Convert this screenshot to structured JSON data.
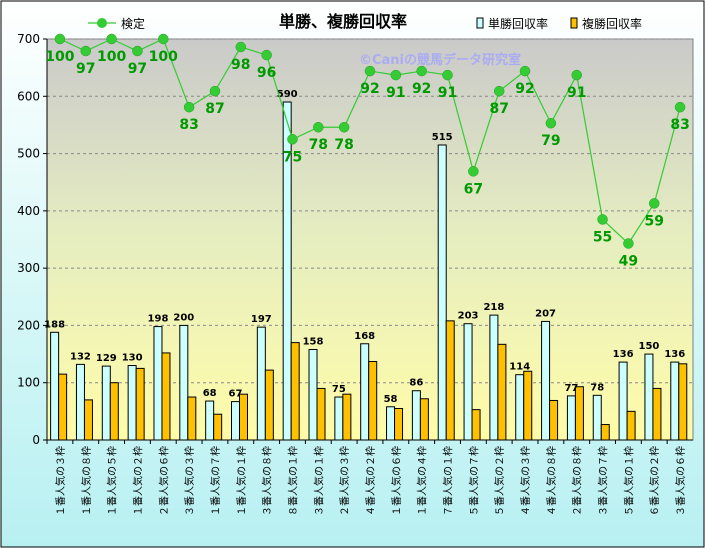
{
  "chart_data": {
    "type": "bar",
    "title": "単勝、複勝回収率",
    "watermark": "©Caniの競馬データ研究室",
    "categories": [
      "１番人気の３枠",
      "１番人気の８枠",
      "１番人気の５枠",
      "１番人気の２枠",
      "２番人気の６枠",
      "３番人気の３枠",
      "１番人気の７枠",
      "１番人気の１枠",
      "３番人気の８枠",
      "８番人気の１枠",
      "３番人気の１枠",
      "２番人気の３枠",
      "４番人気の２枠",
      "１番人気の６枠",
      "１番人気の４枠",
      "７番人気の１枠",
      "５番人気の７枠",
      "５番人気の２枠",
      "４番人気の３枠",
      "４番人気の８枠",
      "２番人気の８枠",
      "３番人気の７枠",
      "５番人気の１枠",
      "６番人気の２枠",
      "３番人気の６枠"
    ],
    "series": [
      {
        "name": "単勝回収率",
        "type": "bar",
        "color": "#ccffff",
        "values": [
          188,
          132,
          129,
          130,
          198,
          200,
          68,
          67,
          197,
          590,
          158,
          75,
          168,
          58,
          86,
          515,
          203,
          218,
          114,
          207,
          77,
          78,
          136,
          150,
          136
        ]
      },
      {
        "name": "複勝回収率",
        "type": "bar",
        "color": "#ffc000",
        "values": [
          115,
          70,
          100,
          125,
          152,
          75,
          45,
          80,
          122,
          170,
          90,
          80,
          137,
          55,
          72,
          208,
          53,
          167,
          120,
          69,
          93,
          27,
          50,
          90,
          133
        ]
      },
      {
        "name": "検定",
        "type": "line",
        "color": "#33cc33",
        "values": [
          100,
          97,
          100,
          97,
          100,
          83,
          87,
          98,
          96,
          75,
          78,
          78,
          92,
          91,
          92,
          91,
          67,
          87,
          92,
          79,
          91,
          55,
          49,
          59,
          83
        ]
      }
    ],
    "ylim": [
      0,
      700
    ],
    "yticks": [
      0,
      100,
      200,
      300,
      400,
      500,
      600,
      700
    ],
    "grid": true,
    "legend": "top"
  }
}
